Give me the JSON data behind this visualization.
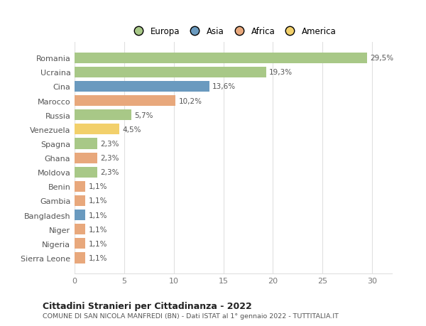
{
  "countries": [
    "Romania",
    "Ucraina",
    "Cina",
    "Marocco",
    "Russia",
    "Venezuela",
    "Spagna",
    "Ghana",
    "Moldova",
    "Benin",
    "Gambia",
    "Bangladesh",
    "Niger",
    "Nigeria",
    "Sierra Leone"
  ],
  "values": [
    29.5,
    19.3,
    13.6,
    10.2,
    5.7,
    4.5,
    2.3,
    2.3,
    2.3,
    1.1,
    1.1,
    1.1,
    1.1,
    1.1,
    1.1
  ],
  "labels": [
    "29,5%",
    "19,3%",
    "13,6%",
    "10,2%",
    "5,7%",
    "4,5%",
    "2,3%",
    "2,3%",
    "2,3%",
    "1,1%",
    "1,1%",
    "1,1%",
    "1,1%",
    "1,1%",
    "1,1%"
  ],
  "colors": [
    "#a8c887",
    "#a8c887",
    "#6a9abf",
    "#e8a87c",
    "#a8c887",
    "#f2d06b",
    "#a8c887",
    "#e8a87c",
    "#a8c887",
    "#e8a87c",
    "#e8a87c",
    "#6a9abf",
    "#e8a87c",
    "#e8a87c",
    "#e8a87c"
  ],
  "legend_labels": [
    "Europa",
    "Asia",
    "Africa",
    "America"
  ],
  "legend_colors": [
    "#a8c887",
    "#6a9abf",
    "#e8a87c",
    "#f2d06b"
  ],
  "title": "Cittadini Stranieri per Cittadinanza - 2022",
  "subtitle": "COMUNE DI SAN NICOLA MANFREDI (BN) - Dati ISTAT al 1° gennaio 2022 - TUTTITALIA.IT",
  "xlim": [
    0,
    32
  ],
  "xticks": [
    0,
    5,
    10,
    15,
    20,
    25,
    30
  ],
  "background_color": "#ffffff",
  "grid_color": "#e0e0e0",
  "bar_height": 0.75
}
